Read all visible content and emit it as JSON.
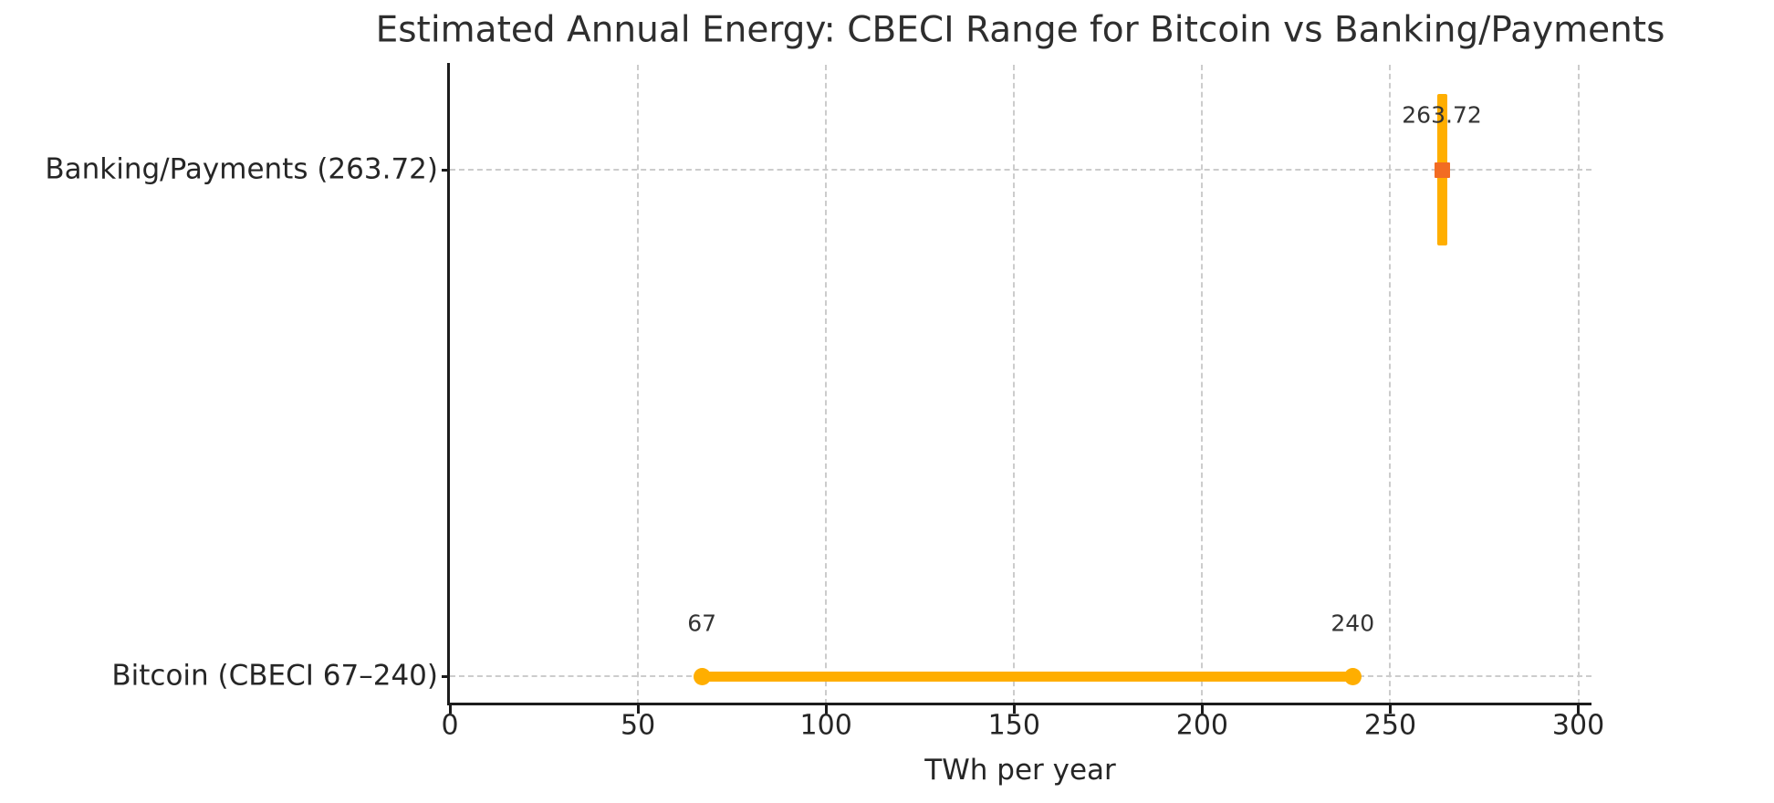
{
  "chart_data": {
    "type": "bar",
    "subtype": "horizontal-range-comparison",
    "title": "Estimated Annual Energy: CBECI Range for Bitcoin vs Banking/Payments",
    "xlabel": "TWh per year",
    "ylabel": "",
    "xlim": [
      0,
      303.5
    ],
    "xticks": [
      0,
      50,
      100,
      150,
      200,
      250,
      300
    ],
    "grid": true,
    "legend": false,
    "background": "#ffffff",
    "colors": {
      "range": "#FFAE00",
      "point_marker": "#F26C23",
      "grid": "#cccccc",
      "axis": "#1c1c1c",
      "text": "#262626"
    },
    "rows": [
      {
        "category": "Banking/Payments (263.72)",
        "kind": "point",
        "value": 263.72,
        "label": "263.72",
        "band_color": "#FFAE00",
        "marker": "square",
        "marker_color": "#F26C23"
      },
      {
        "category": "Bitcoin (CBECI 67–240)",
        "kind": "range",
        "low": 67,
        "high": 240,
        "low_label": "67",
        "high_label": "240",
        "color": "#FFAE00",
        "marker": "circle"
      }
    ]
  }
}
